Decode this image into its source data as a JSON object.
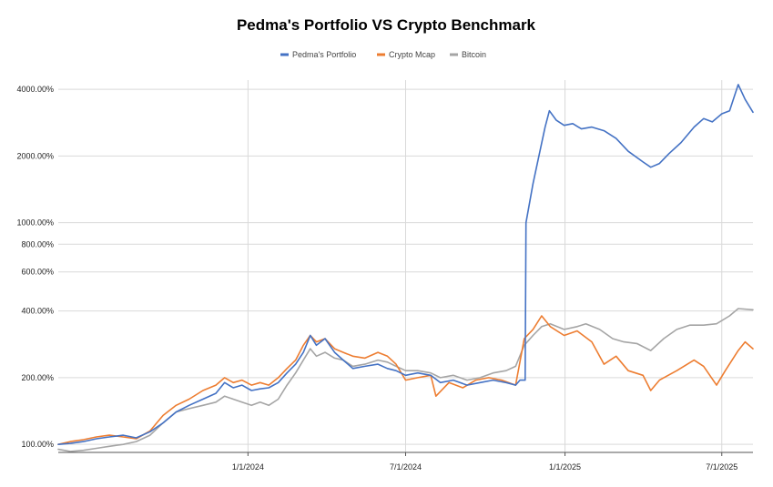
{
  "chart_data": {
    "type": "line",
    "title": "Pedma's Portfolio VS Crypto Benchmark",
    "xlabel": "",
    "ylabel": "",
    "y_scale": "log",
    "ylim": [
      92,
      4400
    ],
    "xlim": [
      "2023-05-27",
      "2025-08-06"
    ],
    "grid": {
      "x": true,
      "y": true
    },
    "legend_position": "top",
    "y_ticks": [
      "100.00%",
      "200.00%",
      "400.00%",
      "600.00%",
      "800.00%",
      "1000.00%",
      "2000.00%",
      "4000.00%"
    ],
    "y_tick_values": [
      100,
      200,
      400,
      600,
      800,
      1000,
      2000,
      4000
    ],
    "x_ticks": [
      "1/1/2024",
      "7/1/2024",
      "1/1/2025",
      "7/1/2025"
    ],
    "x_tick_values": [
      "2024-01-01",
      "2024-07-01",
      "2025-01-01",
      "2025-07-01"
    ],
    "series": [
      {
        "name": "Pedma's Portfolio",
        "color": "#4472c4",
        "points": [
          [
            "2023-05-27",
            100
          ],
          [
            "2023-06-10",
            101
          ],
          [
            "2023-06-25",
            103
          ],
          [
            "2023-07-10",
            106
          ],
          [
            "2023-07-25",
            108
          ],
          [
            "2023-08-10",
            110
          ],
          [
            "2023-08-25",
            107
          ],
          [
            "2023-09-10",
            114
          ],
          [
            "2023-09-25",
            125
          ],
          [
            "2023-10-10",
            140
          ],
          [
            "2023-10-25",
            150
          ],
          [
            "2023-11-10",
            160
          ],
          [
            "2023-11-25",
            170
          ],
          [
            "2023-12-05",
            190
          ],
          [
            "2023-12-15",
            180
          ],
          [
            "2023-12-25",
            185
          ],
          [
            "2024-01-05",
            175
          ],
          [
            "2024-01-15",
            178
          ],
          [
            "2024-01-25",
            180
          ],
          [
            "2024-02-05",
            190
          ],
          [
            "2024-02-15",
            210
          ],
          [
            "2024-02-25",
            230
          ],
          [
            "2024-03-05",
            260
          ],
          [
            "2024-03-13",
            310
          ],
          [
            "2024-03-20",
            280
          ],
          [
            "2024-03-30",
            300
          ],
          [
            "2024-04-10",
            260
          ],
          [
            "2024-04-20",
            240
          ],
          [
            "2024-05-01",
            220
          ],
          [
            "2024-05-15",
            225
          ],
          [
            "2024-05-30",
            230
          ],
          [
            "2024-06-10",
            220
          ],
          [
            "2024-06-20",
            215
          ],
          [
            "2024-07-01",
            205
          ],
          [
            "2024-07-15",
            210
          ],
          [
            "2024-07-30",
            205
          ],
          [
            "2024-08-10",
            190
          ],
          [
            "2024-08-25",
            195
          ],
          [
            "2024-09-10",
            185
          ],
          [
            "2024-09-25",
            190
          ],
          [
            "2024-10-10",
            195
          ],
          [
            "2024-10-25",
            190
          ],
          [
            "2024-11-05",
            185
          ],
          [
            "2024-11-10",
            195
          ],
          [
            "2024-11-16",
            195
          ],
          [
            "2024-11-17",
            1000
          ],
          [
            "2024-11-25",
            1500
          ],
          [
            "2024-12-03",
            2100
          ],
          [
            "2024-12-09",
            2700
          ],
          [
            "2024-12-14",
            3200
          ],
          [
            "2024-12-22",
            2900
          ],
          [
            "2024-12-31",
            2750
          ],
          [
            "2025-01-10",
            2800
          ],
          [
            "2025-01-20",
            2650
          ],
          [
            "2025-02-01",
            2700
          ],
          [
            "2025-02-15",
            2600
          ],
          [
            "2025-03-01",
            2400
          ],
          [
            "2025-03-15",
            2100
          ],
          [
            "2025-04-01",
            1880
          ],
          [
            "2025-04-10",
            1780
          ],
          [
            "2025-04-20",
            1850
          ],
          [
            "2025-05-01",
            2050
          ],
          [
            "2025-05-15",
            2300
          ],
          [
            "2025-05-30",
            2700
          ],
          [
            "2025-06-10",
            2950
          ],
          [
            "2025-06-20",
            2850
          ],
          [
            "2025-07-01",
            3100
          ],
          [
            "2025-07-10",
            3200
          ],
          [
            "2025-07-20",
            4200
          ],
          [
            "2025-07-28",
            3600
          ],
          [
            "2025-08-06",
            3150
          ]
        ]
      },
      {
        "name": "Crypto Mcap",
        "color": "#ed7d31",
        "points": [
          [
            "2023-05-27",
            100
          ],
          [
            "2023-06-10",
            103
          ],
          [
            "2023-06-25",
            105
          ],
          [
            "2023-07-10",
            108
          ],
          [
            "2023-07-25",
            110
          ],
          [
            "2023-08-10",
            108
          ],
          [
            "2023-08-25",
            106
          ],
          [
            "2023-09-10",
            115
          ],
          [
            "2023-09-25",
            135
          ],
          [
            "2023-10-10",
            150
          ],
          [
            "2023-10-25",
            160
          ],
          [
            "2023-11-10",
            175
          ],
          [
            "2023-11-25",
            185
          ],
          [
            "2023-12-05",
            200
          ],
          [
            "2023-12-15",
            190
          ],
          [
            "2023-12-25",
            195
          ],
          [
            "2024-01-05",
            185
          ],
          [
            "2024-01-15",
            190
          ],
          [
            "2024-01-25",
            185
          ],
          [
            "2024-02-05",
            200
          ],
          [
            "2024-02-15",
            220
          ],
          [
            "2024-02-25",
            240
          ],
          [
            "2024-03-05",
            280
          ],
          [
            "2024-03-13",
            310
          ],
          [
            "2024-03-20",
            290
          ],
          [
            "2024-03-30",
            300
          ],
          [
            "2024-04-10",
            270
          ],
          [
            "2024-04-20",
            260
          ],
          [
            "2024-05-01",
            250
          ],
          [
            "2024-05-15",
            245
          ],
          [
            "2024-05-30",
            260
          ],
          [
            "2024-06-10",
            250
          ],
          [
            "2024-06-20",
            230
          ],
          [
            "2024-07-01",
            195
          ],
          [
            "2024-07-15",
            200
          ],
          [
            "2024-07-30",
            205
          ],
          [
            "2024-08-05",
            165
          ],
          [
            "2024-08-20",
            190
          ],
          [
            "2024-09-05",
            180
          ],
          [
            "2024-09-20",
            195
          ],
          [
            "2024-10-05",
            200
          ],
          [
            "2024-10-20",
            195
          ],
          [
            "2024-11-05",
            185
          ],
          [
            "2024-11-15",
            300
          ],
          [
            "2024-11-25",
            330
          ],
          [
            "2024-12-05",
            380
          ],
          [
            "2024-12-15",
            340
          ],
          [
            "2024-12-31",
            310
          ],
          [
            "2025-01-15",
            325
          ],
          [
            "2025-02-01",
            290
          ],
          [
            "2025-02-15",
            230
          ],
          [
            "2025-03-01",
            250
          ],
          [
            "2025-03-15",
            215
          ],
          [
            "2025-04-01",
            205
          ],
          [
            "2025-04-10",
            175
          ],
          [
            "2025-04-20",
            195
          ],
          [
            "2025-05-10",
            215
          ],
          [
            "2025-05-30",
            240
          ],
          [
            "2025-06-10",
            225
          ],
          [
            "2025-06-25",
            185
          ],
          [
            "2025-07-05",
            215
          ],
          [
            "2025-07-20",
            265
          ],
          [
            "2025-07-28",
            290
          ],
          [
            "2025-08-06",
            270
          ]
        ]
      },
      {
        "name": "Bitcoin",
        "color": "#a5a5a5",
        "points": [
          [
            "2023-05-27",
            95
          ],
          [
            "2023-06-10",
            93
          ],
          [
            "2023-06-25",
            94
          ],
          [
            "2023-07-10",
            96
          ],
          [
            "2023-07-25",
            98
          ],
          [
            "2023-08-10",
            100
          ],
          [
            "2023-08-25",
            103
          ],
          [
            "2023-09-10",
            110
          ],
          [
            "2023-09-25",
            125
          ],
          [
            "2023-10-10",
            140
          ],
          [
            "2023-10-25",
            145
          ],
          [
            "2023-11-10",
            150
          ],
          [
            "2023-11-25",
            155
          ],
          [
            "2023-12-05",
            165
          ],
          [
            "2023-12-15",
            160
          ],
          [
            "2023-12-25",
            155
          ],
          [
            "2024-01-05",
            150
          ],
          [
            "2024-01-15",
            155
          ],
          [
            "2024-01-25",
            150
          ],
          [
            "2024-02-05",
            160
          ],
          [
            "2024-02-15",
            185
          ],
          [
            "2024-02-25",
            210
          ],
          [
            "2024-03-05",
            240
          ],
          [
            "2024-03-13",
            270
          ],
          [
            "2024-03-20",
            250
          ],
          [
            "2024-03-30",
            260
          ],
          [
            "2024-04-10",
            245
          ],
          [
            "2024-04-20",
            240
          ],
          [
            "2024-05-01",
            225
          ],
          [
            "2024-05-15",
            230
          ],
          [
            "2024-05-30",
            240
          ],
          [
            "2024-06-10",
            235
          ],
          [
            "2024-06-20",
            225
          ],
          [
            "2024-07-01",
            215
          ],
          [
            "2024-07-15",
            215
          ],
          [
            "2024-07-30",
            210
          ],
          [
            "2024-08-10",
            200
          ],
          [
            "2024-08-25",
            205
          ],
          [
            "2024-09-10",
            195
          ],
          [
            "2024-09-25",
            200
          ],
          [
            "2024-10-10",
            210
          ],
          [
            "2024-10-25",
            215
          ],
          [
            "2024-11-05",
            225
          ],
          [
            "2024-11-15",
            280
          ],
          [
            "2024-11-25",
            310
          ],
          [
            "2024-12-05",
            340
          ],
          [
            "2024-12-15",
            350
          ],
          [
            "2024-12-31",
            330
          ],
          [
            "2025-01-15",
            340
          ],
          [
            "2025-01-25",
            350
          ],
          [
            "2025-02-10",
            330
          ],
          [
            "2025-02-25",
            300
          ],
          [
            "2025-03-10",
            290
          ],
          [
            "2025-03-25",
            285
          ],
          [
            "2025-04-10",
            265
          ],
          [
            "2025-04-25",
            300
          ],
          [
            "2025-05-10",
            330
          ],
          [
            "2025-05-25",
            345
          ],
          [
            "2025-06-10",
            345
          ],
          [
            "2025-06-25",
            350
          ],
          [
            "2025-07-10",
            380
          ],
          [
            "2025-07-20",
            410
          ],
          [
            "2025-08-06",
            405
          ]
        ]
      }
    ]
  }
}
